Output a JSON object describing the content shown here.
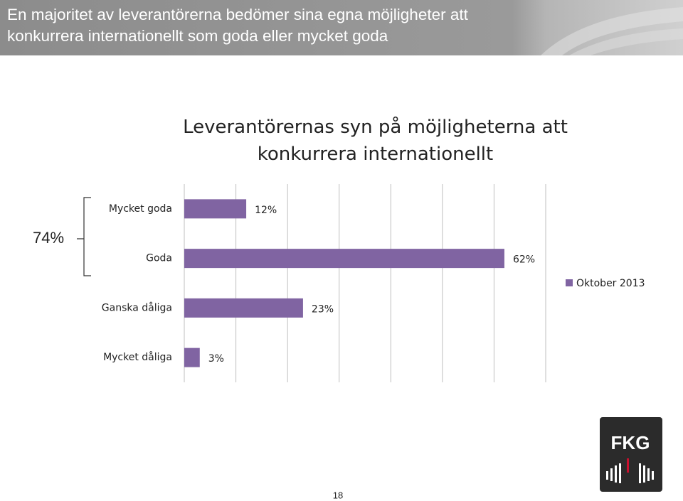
{
  "header": {
    "title": "En majoritet av leverantörerna bedömer sina egna möjligheter att konkurrera internationellt som goda eller mycket goda"
  },
  "chart_data": {
    "type": "bar",
    "orientation": "horizontal",
    "title": "Leverantörernas syn på möjligheterna att konkurrera internationellt",
    "categories": [
      "Mycket goda",
      "Goda",
      "Ganska dåliga",
      "Mycket dåliga"
    ],
    "series": [
      {
        "name": "Oktober 2013",
        "color": "#8064a2",
        "values": [
          12,
          62,
          23,
          3
        ],
        "value_labels": [
          "12%",
          "62%",
          "23%",
          "3%"
        ]
      }
    ],
    "xlim": [
      0,
      70
    ],
    "xgrid": [
      0,
      10,
      20,
      30,
      40,
      50,
      60,
      70
    ],
    "grid": true,
    "legend": "right",
    "annotation": "74%"
  },
  "footer": {
    "page_number": "18",
    "logo": "FKG"
  }
}
